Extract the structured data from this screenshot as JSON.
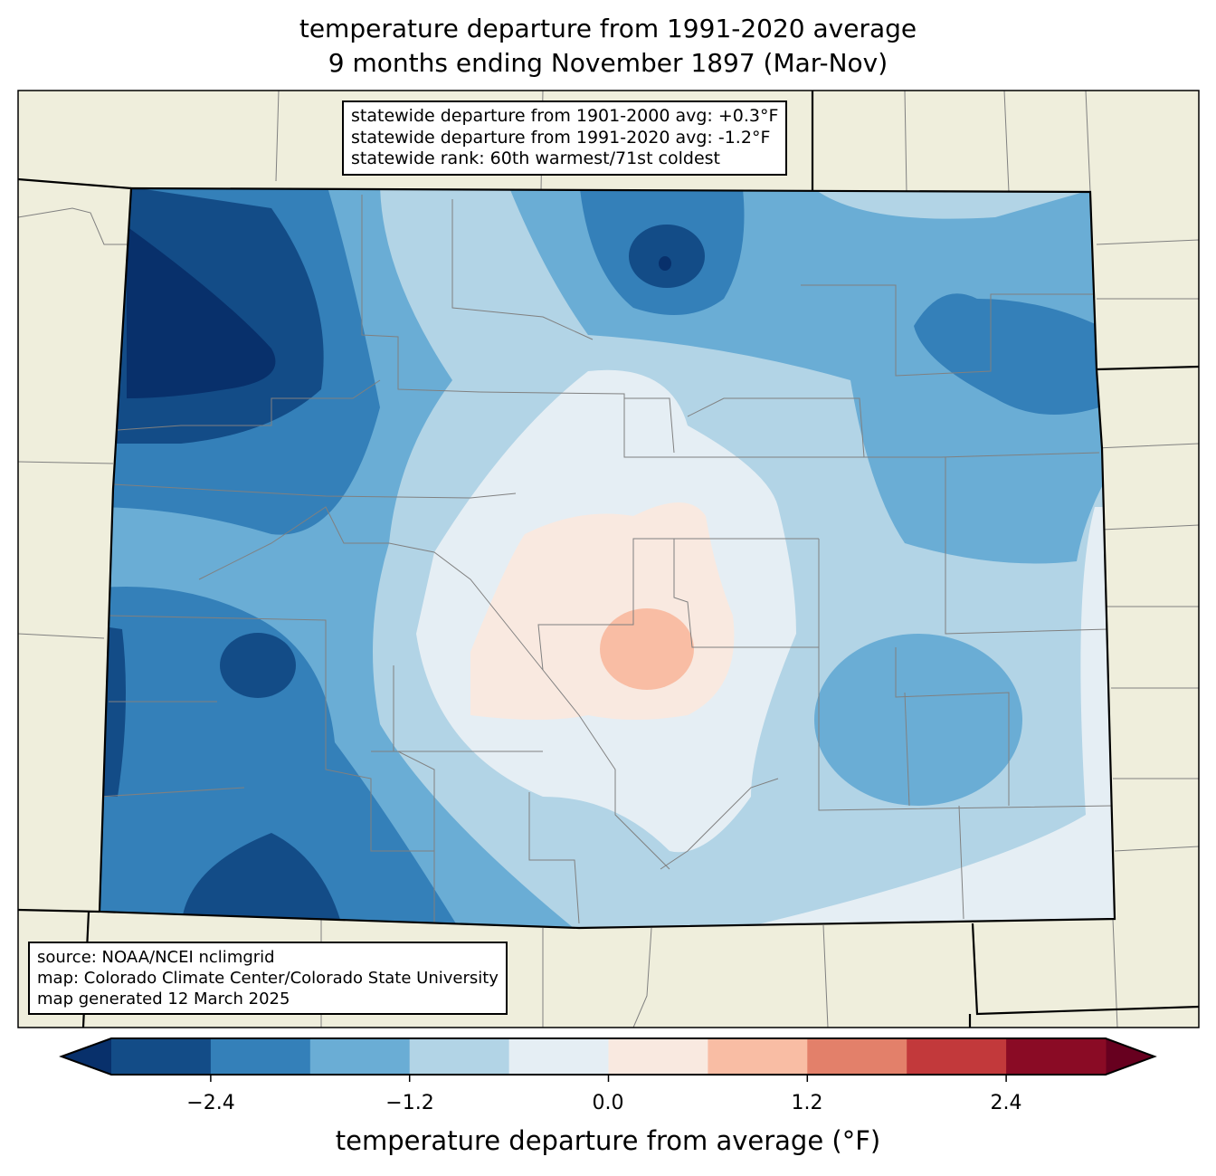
{
  "title": {
    "line1": "temperature departure from 1991-2020 average",
    "line2": "9 months ending November 1897 (Mar-Nov)"
  },
  "stats_box": {
    "lines": [
      "statewide departure from 1901-2000 avg: +0.3°F",
      "statewide departure from 1991-2020 avg: -1.2°F",
      "statewide rank: 60th warmest/71st coldest"
    ]
  },
  "source_box": {
    "lines": [
      "source: NOAA/NCEI nclimgrid",
      "map: Colorado Climate Center/Colorado State University",
      "map generated 12 March 2025"
    ]
  },
  "colorbar": {
    "label": "temperature departure from average (°F)",
    "ticks": [
      "−2.4",
      "−1.2",
      "0.0",
      "1.2",
      "2.4"
    ],
    "boundaries": [
      -3.0,
      -2.4,
      -1.8,
      -1.2,
      -0.6,
      0.0,
      0.6,
      1.2,
      1.8,
      2.4,
      3.0
    ],
    "colors": [
      "#134c87",
      "#3480b9",
      "#6aadd5",
      "#b2d4e6",
      "#e5eef4",
      "#f9e9e0",
      "#f9bda4",
      "#e3806a",
      "#c2393b",
      "#8a0b25"
    ],
    "under_color": "#08306b",
    "over_color": "#67001f"
  },
  "map_colors": {
    "land": "#efeedc",
    "county_line": "#808080"
  }
}
